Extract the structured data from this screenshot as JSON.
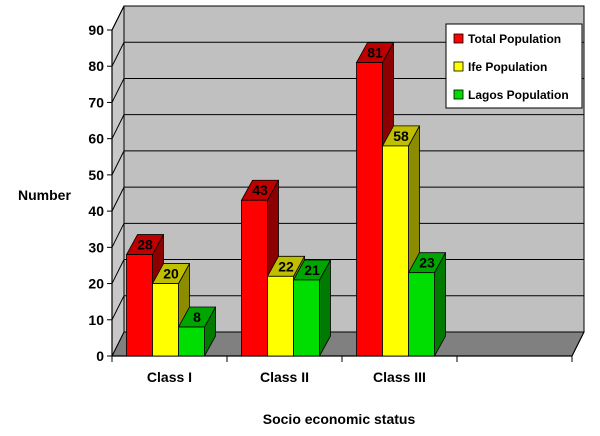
{
  "chart_data": {
    "type": "bar",
    "title": "",
    "xlabel": "Socio economic status",
    "ylabel": "Number",
    "categories": [
      "Class I",
      "Class II",
      "Class III"
    ],
    "ylim": [
      0,
      90
    ],
    "yticks": [
      0,
      10,
      20,
      30,
      40,
      50,
      60,
      70,
      80,
      90
    ],
    "grid": true,
    "legend_position": "top-right",
    "series": [
      {
        "name": "Total Population",
        "values": [
          28,
          43,
          81
        ],
        "color": "#ff0000"
      },
      {
        "name": "Ife Population",
        "values": [
          20,
          22,
          58
        ],
        "color": "#ffff00"
      },
      {
        "name": "Lagos Population",
        "values": [
          8,
          21,
          23
        ],
        "color": "#00dd00"
      }
    ],
    "colors": {
      "wall": "#c0c0c0",
      "floor": "#808080",
      "gridline": "#000000"
    }
  }
}
